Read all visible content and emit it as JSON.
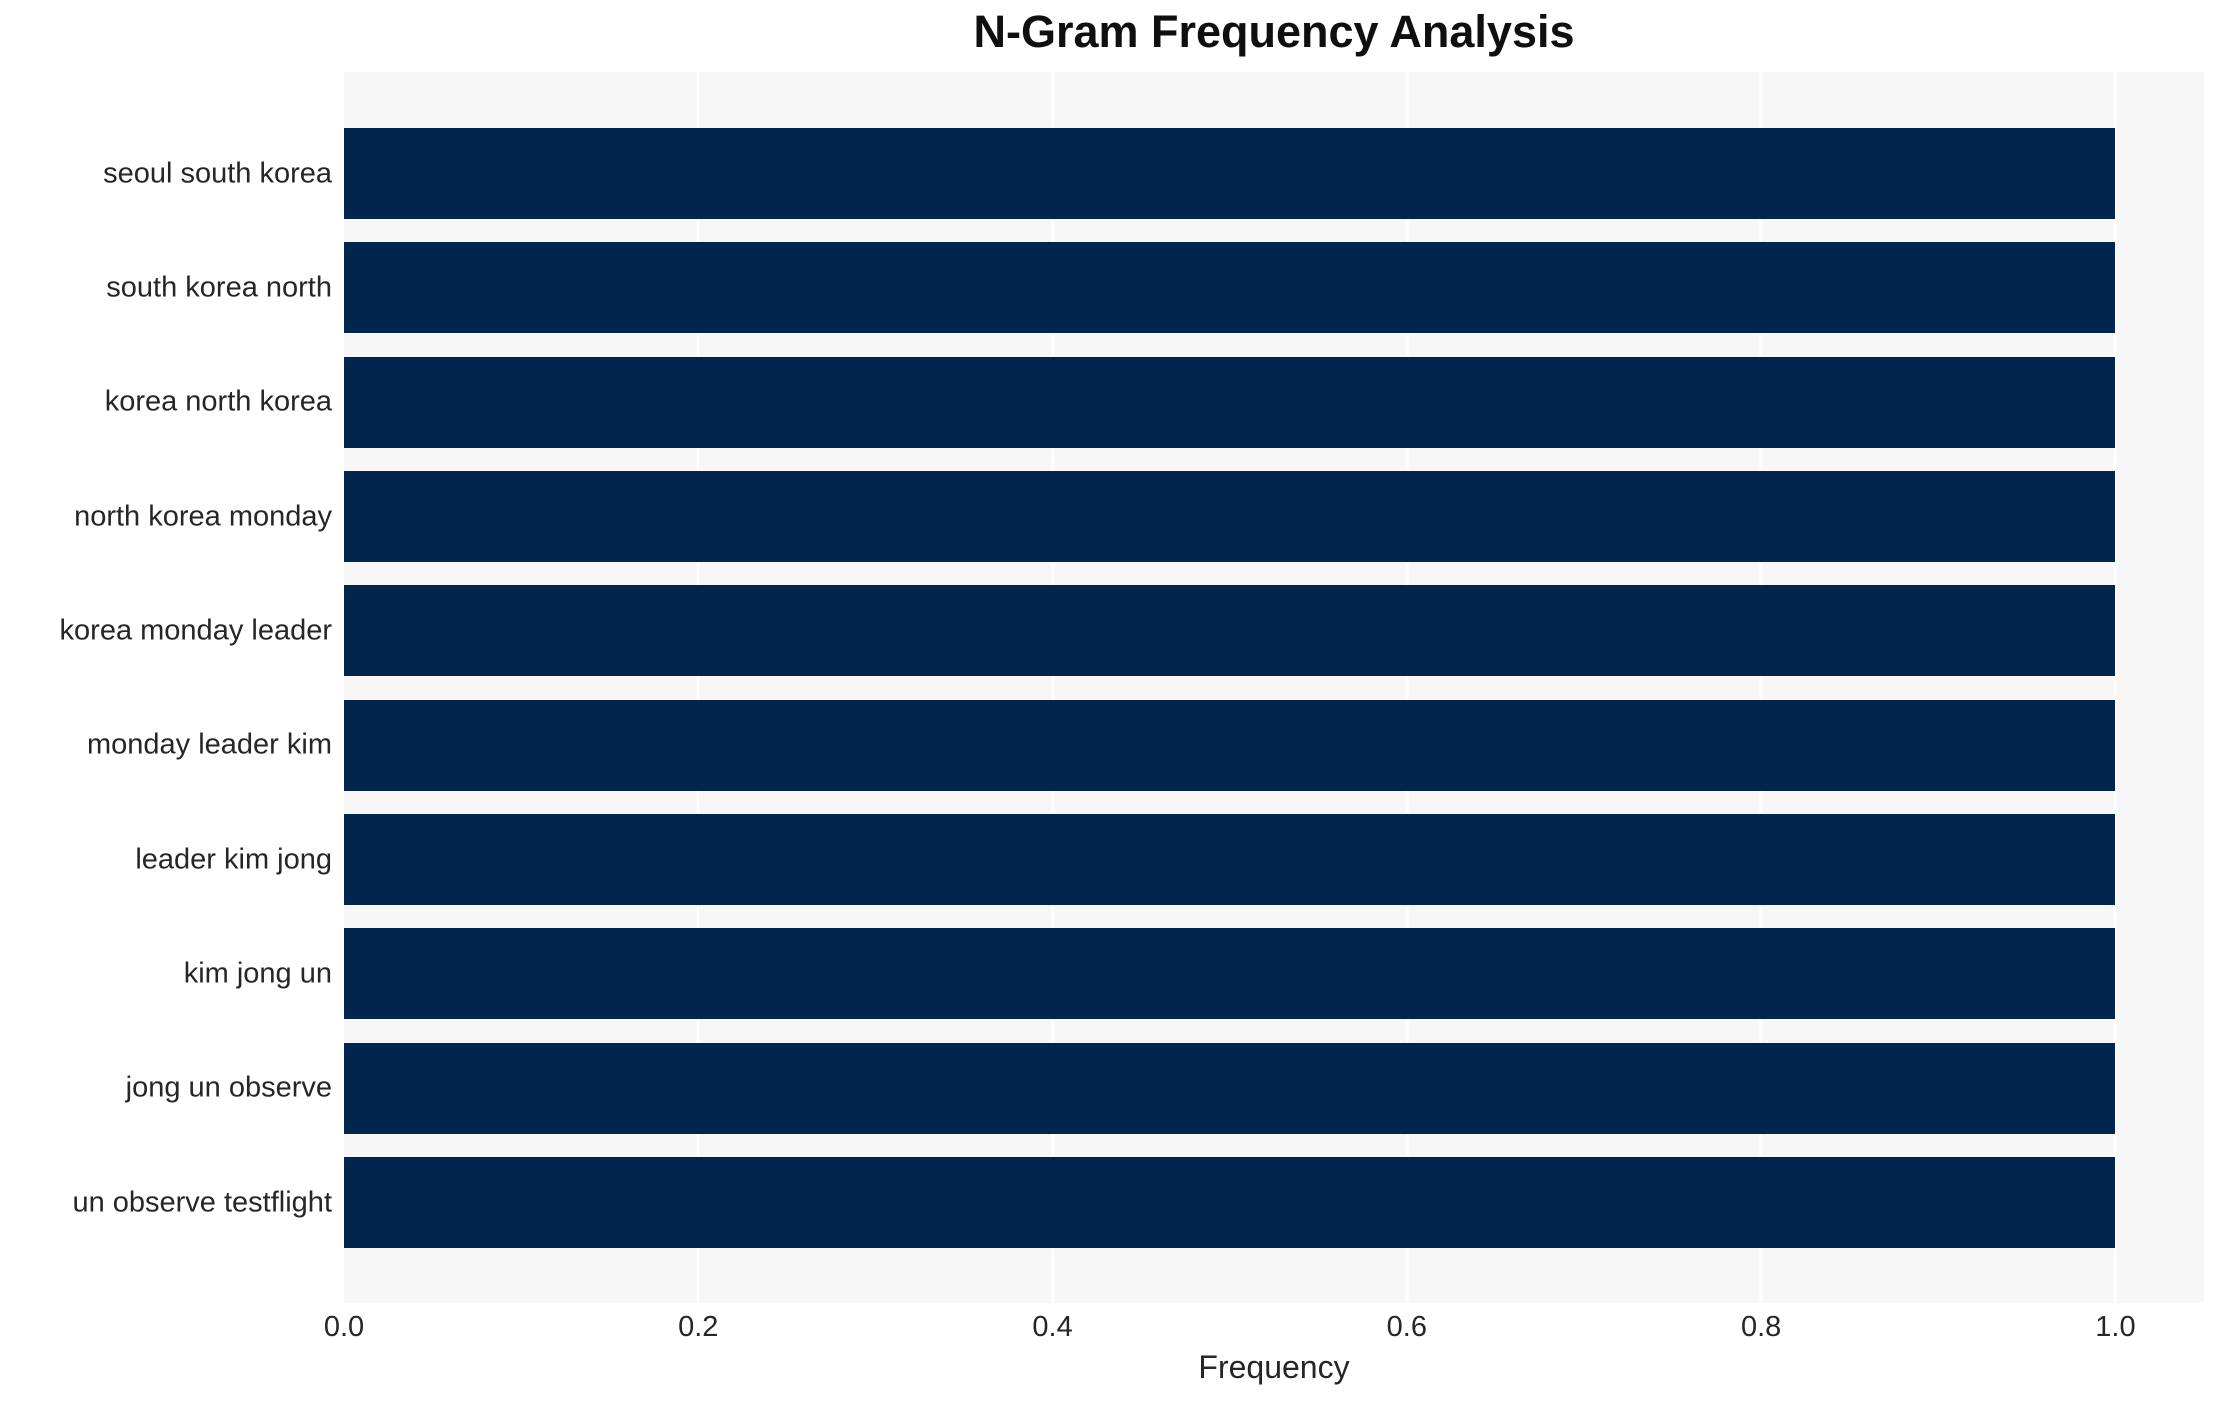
{
  "chart_data": {
    "type": "bar",
    "orientation": "horizontal",
    "title": "N-Gram Frequency Analysis",
    "xlabel": "Frequency",
    "ylabel": "",
    "categories": [
      "seoul south korea",
      "south korea north",
      "korea north korea",
      "north korea monday",
      "korea monday leader",
      "monday leader kim",
      "leader kim jong",
      "kim jong un",
      "jong un observe",
      "un observe testflight"
    ],
    "values": [
      1.0,
      1.0,
      1.0,
      1.0,
      1.0,
      1.0,
      1.0,
      1.0,
      1.0,
      1.0
    ],
    "xlim": [
      0,
      1.05
    ],
    "xticks": [
      "0.0",
      "0.2",
      "0.4",
      "0.6",
      "0.8",
      "1.0"
    ],
    "xtick_values": [
      0,
      0.2,
      0.4,
      0.6,
      0.8,
      1.0
    ],
    "grid": "vertical-white-gridlines",
    "legend": "none",
    "colors": {
      "bar": "#02254e",
      "panel_bg": "#f7f7f7",
      "gridline": "#ffffff",
      "text": "#262626",
      "title": "#0f0f0f",
      "figure_bg": "#ffffff"
    }
  }
}
